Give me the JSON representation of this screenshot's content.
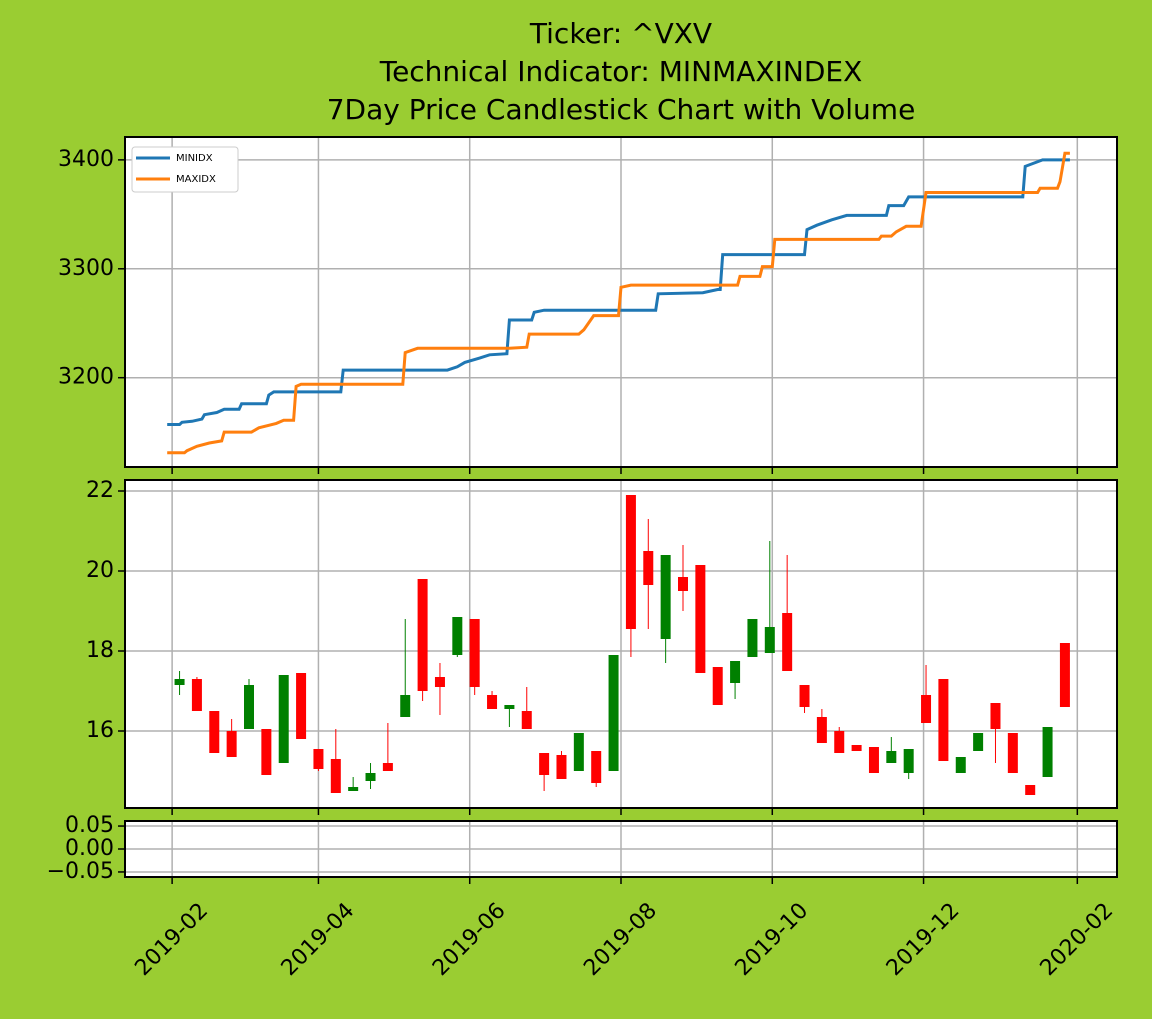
{
  "chart_data": [
    {
      "type": "line",
      "title": [
        "Ticker: ^VXV",
        "Technical Indicator: MINMAXINDEX",
        "7Day Price Candlestick Chart with Volume"
      ],
      "xlim": [
        "2019-01-13",
        "2020-02-17"
      ],
      "xticks": [
        "2019-02",
        "2019-04",
        "2019-06",
        "2019-08",
        "2019-10",
        "2019-12",
        "2020-02"
      ],
      "ylim": [
        3118,
        3421
      ],
      "yticks": [
        3200,
        3300,
        3400
      ],
      "grid": true,
      "legend": "upper left",
      "series": [
        {
          "name": "MINIDX",
          "color": "#1f77b4",
          "x": [
            "2019-01-30",
            "2019-02-04",
            "2019-02-05",
            "2019-02-09",
            "2019-02-13",
            "2019-02-14",
            "2019-02-19",
            "2019-02-22",
            "2019-02-28",
            "2019-03-01",
            "2019-03-11",
            "2019-03-12",
            "2019-03-14",
            "2019-04-10",
            "2019-04-11",
            "2019-05-23",
            "2019-05-27",
            "2019-05-30",
            "2019-06-05",
            "2019-06-09",
            "2019-06-16",
            "2019-06-17",
            "2019-06-26",
            "2019-06-27",
            "2019-07-01",
            "2019-08-15",
            "2019-08-16",
            "2019-09-03",
            "2019-09-09",
            "2019-09-10",
            "2019-09-11",
            "2019-10-14",
            "2019-10-15",
            "2019-10-19",
            "2019-10-25",
            "2019-10-31",
            "2019-11-16",
            "2019-11-17",
            "2019-11-23",
            "2019-11-25",
            "2020-01-10",
            "2020-01-11",
            "2020-01-18",
            "2020-01-29"
          ],
          "values": [
            3157,
            3157,
            3159,
            3160,
            3162,
            3166,
            3168,
            3171,
            3171,
            3176,
            3176,
            3184,
            3187,
            3187,
            3207,
            3207,
            3210,
            3214,
            3218,
            3221,
            3222,
            3253,
            3253,
            3260,
            3262,
            3262,
            3277,
            3278,
            3281,
            3281,
            3313,
            3313,
            3336,
            3340,
            3345,
            3349,
            3349,
            3358,
            3358,
            3366,
            3366,
            3394,
            3400,
            3400
          ]
        },
        {
          "name": "MAXIDX",
          "color": "#ff7f0e",
          "x": [
            "2019-01-30",
            "2019-02-06",
            "2019-02-07",
            "2019-02-11",
            "2019-02-16",
            "2019-02-21",
            "2019-02-22",
            "2019-03-05",
            "2019-03-08",
            "2019-03-15",
            "2019-03-18",
            "2019-03-22",
            "2019-03-23",
            "2019-03-25",
            "2019-05-05",
            "2019-05-06",
            "2019-05-11",
            "2019-06-17",
            "2019-06-24",
            "2019-06-25",
            "2019-07-15",
            "2019-07-17",
            "2019-07-21",
            "2019-07-31",
            "2019-08-01",
            "2019-08-05",
            "2019-09-17",
            "2019-09-18",
            "2019-09-26",
            "2019-09-27",
            "2019-10-01",
            "2019-10-02",
            "2019-11-13",
            "2019-11-14",
            "2019-11-18",
            "2019-11-20",
            "2019-11-24",
            "2019-11-30",
            "2019-12-02",
            "2020-01-16",
            "2020-01-17",
            "2020-01-24",
            "2020-01-25",
            "2020-01-27",
            "2020-01-29"
          ],
          "values": [
            3131,
            3131,
            3133,
            3137,
            3140,
            3142,
            3150,
            3150,
            3154,
            3158,
            3161,
            3161,
            3192,
            3194,
            3194,
            3223,
            3227,
            3227,
            3228,
            3240,
            3240,
            3244,
            3257,
            3257,
            3283,
            3285,
            3285,
            3293,
            3293,
            3302,
            3302,
            3327,
            3327,
            3330,
            3330,
            3334,
            3339,
            3339,
            3370,
            3370,
            3374,
            3374,
            3380,
            3406,
            3406
          ]
        }
      ]
    },
    {
      "type": "candlestick",
      "xlim": [
        "2019-01-13",
        "2020-02-17"
      ],
      "xticks": [
        "2019-02",
        "2019-04",
        "2019-06",
        "2019-08",
        "2019-10",
        "2019-12",
        "2020-02"
      ],
      "ylim": [
        14.075,
        22.275
      ],
      "yticks": [
        16,
        18,
        20,
        22
      ],
      "grid": true,
      "colorup": "green",
      "colordown": "red",
      "x": [
        "2019-02-04",
        "2019-02-11",
        "2019-02-18",
        "2019-02-25",
        "2019-03-04",
        "2019-03-11",
        "2019-03-18",
        "2019-03-25",
        "2019-04-01",
        "2019-04-08",
        "2019-04-15",
        "2019-04-22",
        "2019-04-29",
        "2019-05-06",
        "2019-05-13",
        "2019-05-20",
        "2019-05-27",
        "2019-06-03",
        "2019-06-10",
        "2019-06-17",
        "2019-06-24",
        "2019-07-01",
        "2019-07-08",
        "2019-07-15",
        "2019-07-22",
        "2019-07-29",
        "2019-08-05",
        "2019-08-12",
        "2019-08-19",
        "2019-08-26",
        "2019-09-02",
        "2019-09-09",
        "2019-09-16",
        "2019-09-23",
        "2019-09-30",
        "2019-10-07",
        "2019-10-14",
        "2019-10-21",
        "2019-10-28",
        "2019-11-04",
        "2019-11-11",
        "2019-11-18",
        "2019-11-25",
        "2019-12-02",
        "2019-12-09",
        "2019-12-16",
        "2019-12-23",
        "2019-12-30",
        "2020-01-06",
        "2020-01-13",
        "2020-01-20",
        "2020-01-27"
      ],
      "open": [
        17.15,
        17.3,
        16.5,
        16.0,
        16.05,
        16.05,
        15.2,
        17.45,
        15.55,
        15.3,
        14.5,
        14.75,
        15.2,
        16.35,
        19.8,
        17.35,
        17.9,
        18.8,
        16.9,
        16.55,
        16.5,
        15.45,
        15.4,
        15.0,
        15.5,
        15.0,
        21.9,
        20.5,
        18.3,
        19.85,
        20.15,
        17.6,
        17.2,
        17.85,
        17.95,
        18.95,
        17.15,
        16.35,
        16.0,
        15.65,
        15.6,
        15.2,
        14.95,
        16.9,
        17.3,
        14.95,
        15.5,
        16.7,
        15.95,
        14.65,
        14.85,
        18.2
      ],
      "high": [
        17.5,
        17.35,
        16.5,
        16.3,
        17.3,
        16.05,
        17.4,
        17.45,
        15.55,
        16.05,
        14.85,
        15.2,
        16.2,
        18.8,
        19.8,
        17.7,
        18.85,
        18.8,
        17.0,
        16.65,
        17.1,
        15.45,
        15.5,
        15.95,
        15.5,
        17.9,
        21.9,
        21.3,
        20.4,
        20.65,
        20.15,
        17.6,
        17.75,
        18.8,
        20.75,
        20.4,
        17.15,
        16.55,
        16.1,
        15.65,
        15.6,
        15.85,
        15.55,
        17.65,
        17.3,
        15.35,
        15.95,
        16.7,
        15.95,
        14.65,
        16.1,
        18.2
      ],
      "low": [
        16.9,
        16.5,
        15.45,
        15.35,
        16.05,
        14.9,
        15.2,
        15.8,
        15.0,
        14.45,
        14.5,
        14.55,
        15.0,
        16.35,
        16.75,
        16.4,
        17.85,
        16.9,
        16.55,
        16.1,
        16.05,
        14.5,
        14.8,
        15.0,
        14.6,
        15.0,
        17.85,
        18.55,
        17.7,
        19.0,
        17.45,
        16.65,
        16.8,
        17.85,
        17.95,
        17.5,
        16.45,
        15.7,
        15.45,
        15.5,
        14.95,
        15.2,
        14.8,
        16.2,
        15.25,
        14.95,
        15.5,
        15.2,
        14.95,
        14.4,
        14.85,
        16.6
      ],
      "close": [
        17.3,
        16.5,
        15.45,
        15.35,
        17.15,
        14.9,
        17.4,
        15.8,
        15.05,
        14.45,
        14.6,
        14.95,
        15.0,
        16.9,
        17.0,
        17.1,
        18.85,
        17.1,
        16.55,
        16.65,
        16.05,
        14.9,
        14.8,
        15.95,
        14.7,
        17.9,
        18.55,
        19.65,
        20.4,
        19.5,
        17.45,
        16.65,
        17.75,
        18.8,
        18.6,
        17.5,
        16.6,
        15.7,
        15.45,
        15.5,
        14.95,
        15.5,
        15.55,
        16.2,
        15.25,
        15.35,
        15.95,
        16.05,
        14.95,
        14.4,
        16.1,
        16.6
      ]
    },
    {
      "type": "bar",
      "xlim": [
        "2019-01-13",
        "2020-02-17"
      ],
      "xticks": [
        "2019-02",
        "2019-04",
        "2019-06",
        "2019-08",
        "2019-10",
        "2019-12",
        "2020-02"
      ],
      "ylim": [
        -0.061,
        0.061
      ],
      "yticks": [
        0.05,
        {
          "value": 0,
          "label": "0.00"
        },
        {
          "value": -0.05,
          "label": "−0.05"
        }
      ],
      "grid": true
    }
  ]
}
